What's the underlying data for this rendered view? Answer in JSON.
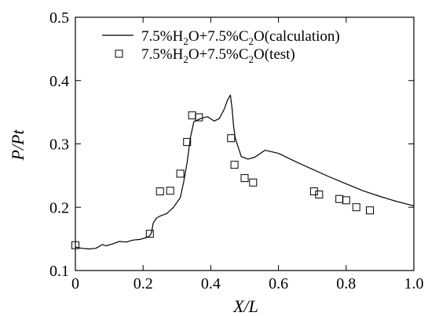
{
  "chart_data": {
    "type": "line",
    "title": "",
    "xlabel": "X/L",
    "ylabel": "P/Pt",
    "xlim": [
      0,
      1.0
    ],
    "ylim": [
      0.1,
      0.5
    ],
    "x_ticks": [
      "0",
      "0.2",
      "0.4",
      "0.6",
      "0.8",
      "1.0"
    ],
    "y_ticks": [
      "0.1",
      "0.2",
      "0.3",
      "0.4",
      "0.5"
    ],
    "grid": false,
    "legend_position": "top-right",
    "series": [
      {
        "name": "7.5%H2O+7.5%C2O(calculation)",
        "style": "line",
        "x": [
          0,
          0.02,
          0.04,
          0.06,
          0.08,
          0.09,
          0.11,
          0.13,
          0.15,
          0.17,
          0.19,
          0.21,
          0.22,
          0.225,
          0.23,
          0.24,
          0.25,
          0.27,
          0.29,
          0.31,
          0.32,
          0.33,
          0.34,
          0.35,
          0.37,
          0.39,
          0.41,
          0.425,
          0.44,
          0.45,
          0.458,
          0.463,
          0.467,
          0.472,
          0.478,
          0.49,
          0.51,
          0.53,
          0.56,
          0.6,
          0.65,
          0.7,
          0.75,
          0.8,
          0.85,
          0.9,
          0.95,
          1.0
        ],
        "values": [
          0.137,
          0.135,
          0.134,
          0.135,
          0.141,
          0.139,
          0.142,
          0.146,
          0.145,
          0.148,
          0.149,
          0.152,
          0.155,
          0.16,
          0.175,
          0.183,
          0.186,
          0.19,
          0.2,
          0.215,
          0.24,
          0.27,
          0.31,
          0.335,
          0.34,
          0.343,
          0.336,
          0.34,
          0.355,
          0.37,
          0.377,
          0.355,
          0.33,
          0.31,
          0.3,
          0.28,
          0.276,
          0.279,
          0.29,
          0.285,
          0.272,
          0.26,
          0.248,
          0.237,
          0.226,
          0.217,
          0.209,
          0.202
        ]
      },
      {
        "name": "7.5%H2O+7.5%C2O(test)",
        "style": "markers",
        "x": [
          0.0,
          0.22,
          0.25,
          0.28,
          0.31,
          0.33,
          0.345,
          0.365,
          0.46,
          0.47,
          0.5,
          0.525,
          0.705,
          0.72,
          0.78,
          0.8,
          0.83,
          0.87
        ],
        "values": [
          0.14,
          0.158,
          0.225,
          0.226,
          0.253,
          0.303,
          0.345,
          0.342,
          0.309,
          0.267,
          0.246,
          0.239,
          0.225,
          0.22,
          0.213,
          0.211,
          0.2,
          0.195
        ]
      }
    ]
  },
  "legend": {
    "line_parts": {
      "a": "7.5%H",
      "b": "2",
      "c": "O+7.5%C",
      "d": "2",
      "e": "O(calculation)"
    },
    "marker_parts": {
      "a": "7.5%H",
      "b": "2",
      "c": "O+7.5%C",
      "d": "2",
      "e": "O(test)"
    }
  }
}
